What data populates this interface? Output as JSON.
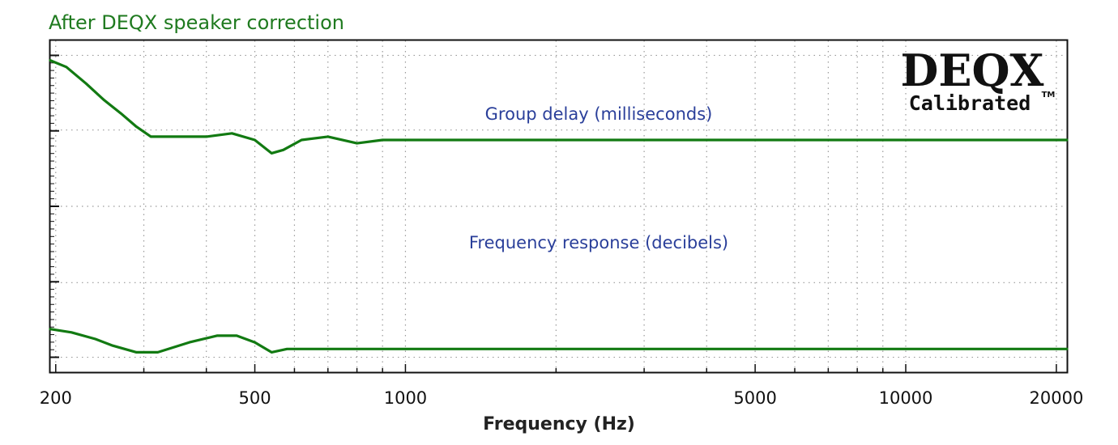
{
  "chart_data": {
    "type": "line",
    "title": "After DEQX speaker correction",
    "xlabel": "Frequency (Hz)",
    "ylabel": "",
    "x_scale": "log",
    "xlim": [
      195,
      21000
    ],
    "x_ticks": [
      200,
      500,
      1000,
      5000,
      10000,
      20000
    ],
    "x_tick_labels": [
      "200",
      "500",
      "1000",
      "5000",
      "10000",
      "20000"
    ],
    "grid": true,
    "annotations": [
      "Group delay (milliseconds)",
      "Frequency response (decibels)"
    ],
    "logo": {
      "main": "DEQX",
      "sub": "Calibrated",
      "tm": "TM"
    },
    "colors": {
      "line": "#127a12",
      "title": "#1f7a1f",
      "annotation": "#2a3f9a"
    },
    "series": [
      {
        "x": [
          195,
          210,
          230,
          250,
          270,
          290,
          310,
          350,
          400,
          450,
          500,
          540,
          570,
          620,
          700,
          800,
          900,
          1000,
          1300,
          2000,
          3000,
          5000,
          10000,
          21000
        ],
        "values": [
          0.94,
          0.92,
          0.87,
          0.82,
          0.78,
          0.74,
          0.71,
          0.71,
          0.71,
          0.72,
          0.7,
          0.66,
          0.67,
          0.7,
          0.71,
          0.69,
          0.7,
          0.7,
          0.7,
          0.7,
          0.7,
          0.7,
          0.7,
          0.7
        ]
      },
      {
        "x": [
          195,
          215,
          240,
          260,
          290,
          320,
          370,
          420,
          460,
          500,
          540,
          580,
          700,
          1000,
          2000,
          5000,
          10000,
          21000
        ],
        "values": [
          0.13,
          0.12,
          0.1,
          0.08,
          0.06,
          0.06,
          0.09,
          0.11,
          0.11,
          0.09,
          0.06,
          0.07,
          0.07,
          0.07,
          0.07,
          0.07,
          0.07,
          0.07
        ]
      }
    ]
  }
}
